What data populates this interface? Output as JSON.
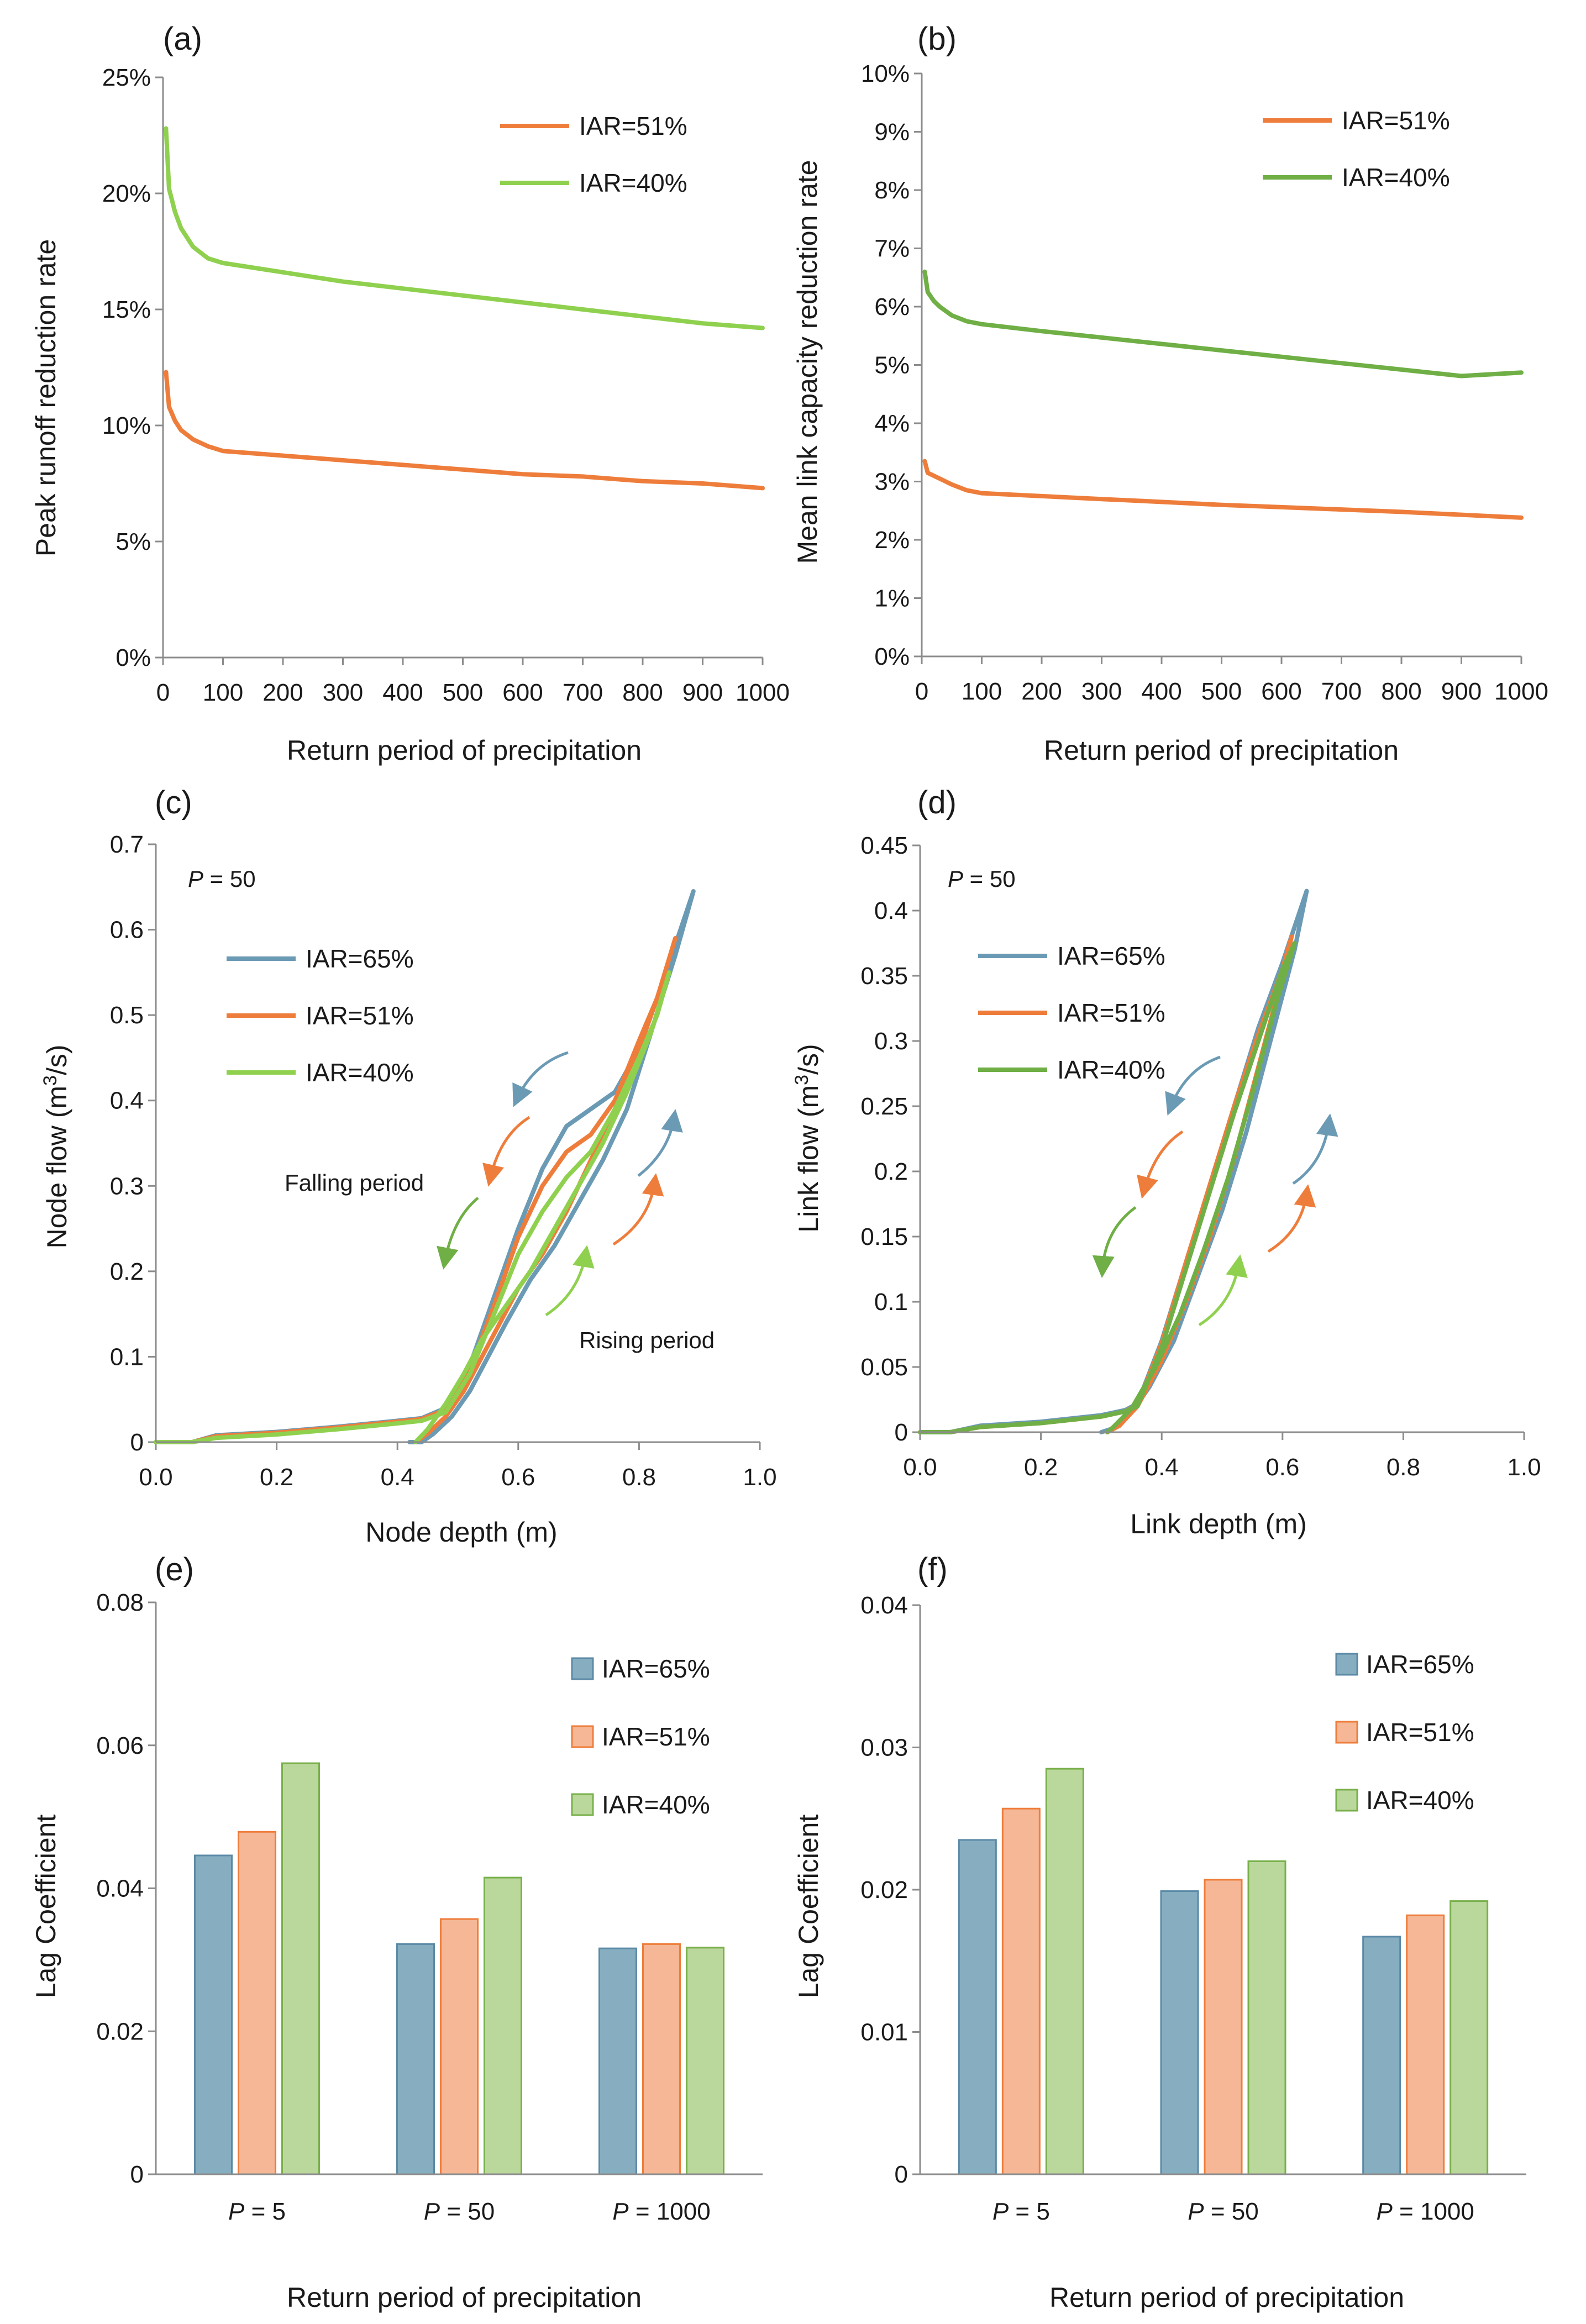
{
  "figure": {
    "colors": {
      "IAR=65%": "#6b9ab5",
      "IAR=51%": "#ee7d3b",
      "IAR=40%": "#8fd14f",
      "IAR=40%_b": "#6faf46",
      "bar_IAR=65%": "#86aec0",
      "bar_IAR=65%_edge": "#5b8aa6",
      "bar_IAR=51%": "#f5b796",
      "bar_IAR=51%_edge": "#ee7d3b",
      "bar_IAR=40%": "#bad79c",
      "bar_IAR=40%_edge": "#78b04a",
      "axis": "#8c8c8c"
    }
  },
  "chart_data": [
    {
      "id": "a",
      "panel_label": "(a)",
      "type": "line",
      "xlabel": "Return period of precipitation",
      "ylabel": "Peak runoff reduction rate",
      "xlim": [
        0,
        1000
      ],
      "ylim": [
        0,
        0.25
      ],
      "xticks": [
        0,
        100,
        200,
        300,
        400,
        500,
        600,
        700,
        800,
        900,
        1000
      ],
      "yticks": [
        0,
        0.05,
        0.1,
        0.15,
        0.2,
        0.25
      ],
      "ytick_labels": [
        "0%",
        "5%",
        "10%",
        "15%",
        "20%",
        "25%"
      ],
      "legend": "top-right",
      "series": [
        {
          "name": "IAR=51%",
          "x": [
            5,
            10,
            20,
            30,
            50,
            75,
            100,
            200,
            300,
            400,
            500,
            600,
            700,
            800,
            900,
            1000
          ],
          "y": [
            0.123,
            0.108,
            0.102,
            0.098,
            0.094,
            0.091,
            0.089,
            0.087,
            0.085,
            0.083,
            0.081,
            0.079,
            0.078,
            0.076,
            0.075,
            0.073
          ]
        },
        {
          "name": "IAR=40%",
          "x": [
            5,
            10,
            20,
            30,
            50,
            75,
            100,
            200,
            300,
            400,
            500,
            600,
            700,
            800,
            900,
            1000
          ],
          "y": [
            0.228,
            0.202,
            0.192,
            0.185,
            0.177,
            0.172,
            0.17,
            0.166,
            0.162,
            0.159,
            0.156,
            0.153,
            0.15,
            0.147,
            0.144,
            0.142
          ]
        }
      ]
    },
    {
      "id": "b",
      "panel_label": "(b)",
      "type": "line",
      "xlabel": "Return period of precipitation",
      "ylabel": "Mean link capacity reduction rate",
      "xlim": [
        0,
        1000
      ],
      "ylim": [
        0,
        0.1
      ],
      "xticks": [
        0,
        100,
        200,
        300,
        400,
        500,
        600,
        700,
        800,
        900,
        1000
      ],
      "yticks": [
        0,
        0.01,
        0.02,
        0.03,
        0.04,
        0.05,
        0.06,
        0.07,
        0.08,
        0.09,
        0.1
      ],
      "ytick_labels": [
        "0%",
        "1%",
        "2%",
        "3%",
        "4%",
        "5%",
        "6%",
        "7%",
        "8%",
        "9%",
        "10%"
      ],
      "legend": "top-right",
      "series": [
        {
          "name": "IAR=51%",
          "x": [
            5,
            10,
            20,
            30,
            50,
            75,
            100,
            200,
            300,
            400,
            500,
            600,
            700,
            800,
            900,
            1000
          ],
          "y": [
            0.0335,
            0.0315,
            0.031,
            0.0305,
            0.0295,
            0.0285,
            0.028,
            0.0275,
            0.027,
            0.0265,
            0.026,
            0.0256,
            0.0252,
            0.0248,
            0.0243,
            0.0238
          ]
        },
        {
          "name": "IAR=40%",
          "x": [
            5,
            10,
            20,
            30,
            50,
            75,
            100,
            200,
            300,
            400,
            500,
            600,
            700,
            800,
            900,
            1000
          ],
          "y": [
            0.066,
            0.0625,
            0.061,
            0.06,
            0.0585,
            0.0575,
            0.057,
            0.0558,
            0.0547,
            0.0536,
            0.0525,
            0.0514,
            0.0503,
            0.0492,
            0.0481,
            0.0487
          ]
        }
      ]
    },
    {
      "id": "c",
      "panel_label": "(c)",
      "type": "line",
      "xlabel": "Node depth (m)",
      "ylabel_parts": [
        "Node flow (m",
        "3",
        "/s)"
      ],
      "xlim": [
        0,
        1.0
      ],
      "ylim": [
        0,
        0.7
      ],
      "xticks": [
        0,
        0.2,
        0.4,
        0.6,
        0.8,
        1.0
      ],
      "xtick_labels": [
        "0.0",
        "0.2",
        "0.4",
        "0.6",
        "0.8",
        "1.0"
      ],
      "yticks": [
        0,
        0.1,
        0.2,
        0.3,
        0.4,
        0.5,
        0.6,
        0.7
      ],
      "ytick_labels": [
        "0",
        "0.1",
        "0.2",
        "0.3",
        "0.4",
        "0.5",
        "0.6",
        "0.7"
      ],
      "annotation_p": "P",
      "annotation_p_value": " = 50",
      "annotation_falling": "Falling period",
      "annotation_rising": "Rising period",
      "legend": "top-left",
      "series": [
        {
          "name": "IAR=65%",
          "x": [
            0.0,
            0.06,
            0.1,
            0.2,
            0.3,
            0.4,
            0.44,
            0.48,
            0.52,
            0.56,
            0.6,
            0.64,
            0.68,
            0.72,
            0.76,
            0.8,
            0.84,
            0.89,
            0.86,
            0.82,
            0.78,
            0.74,
            0.7,
            0.66,
            0.62,
            0.58,
            0.55,
            0.52,
            0.49,
            0.46,
            0.44,
            0.42
          ],
          "y": [
            0.0,
            0.0,
            0.008,
            0.012,
            0.018,
            0.025,
            0.028,
            0.04,
            0.09,
            0.17,
            0.25,
            0.32,
            0.37,
            0.39,
            0.41,
            0.46,
            0.54,
            0.645,
            0.57,
            0.48,
            0.39,
            0.33,
            0.28,
            0.23,
            0.19,
            0.14,
            0.1,
            0.06,
            0.03,
            0.01,
            0.0,
            0.0
          ]
        },
        {
          "name": "IAR=51%",
          "x": [
            0.0,
            0.06,
            0.1,
            0.2,
            0.3,
            0.4,
            0.44,
            0.48,
            0.52,
            0.56,
            0.6,
            0.64,
            0.68,
            0.72,
            0.76,
            0.8,
            0.83,
            0.86,
            0.83,
            0.8,
            0.76,
            0.72,
            0.68,
            0.64,
            0.6,
            0.57,
            0.54,
            0.51,
            0.48,
            0.45,
            0.43
          ],
          "y": [
            0.0,
            0.0,
            0.007,
            0.011,
            0.017,
            0.024,
            0.027,
            0.038,
            0.085,
            0.16,
            0.24,
            0.3,
            0.34,
            0.36,
            0.4,
            0.47,
            0.52,
            0.59,
            0.52,
            0.46,
            0.39,
            0.33,
            0.27,
            0.22,
            0.18,
            0.14,
            0.1,
            0.06,
            0.03,
            0.01,
            0.0
          ]
        },
        {
          "name": "IAR=40%",
          "x": [
            0.0,
            0.06,
            0.1,
            0.2,
            0.3,
            0.4,
            0.44,
            0.48,
            0.52,
            0.56,
            0.6,
            0.64,
            0.68,
            0.72,
            0.76,
            0.8,
            0.83,
            0.85,
            0.82,
            0.78,
            0.74,
            0.7,
            0.66,
            0.62,
            0.58,
            0.54,
            0.51,
            0.48,
            0.45,
            0.43
          ],
          "y": [
            0.0,
            0.0,
            0.005,
            0.009,
            0.015,
            0.022,
            0.025,
            0.035,
            0.08,
            0.15,
            0.22,
            0.27,
            0.31,
            0.34,
            0.39,
            0.45,
            0.5,
            0.55,
            0.48,
            0.41,
            0.35,
            0.3,
            0.25,
            0.2,
            0.16,
            0.12,
            0.08,
            0.045,
            0.015,
            0.0
          ]
        }
      ]
    },
    {
      "id": "d",
      "panel_label": "(d)",
      "type": "line",
      "xlabel": "Link depth (m)",
      "ylabel_parts": [
        "Link flow (m",
        "3",
        "/s)"
      ],
      "xlim": [
        0,
        1.0
      ],
      "ylim": [
        0,
        0.45
      ],
      "xticks": [
        0,
        0.2,
        0.4,
        0.6,
        0.8,
        1.0
      ],
      "xtick_labels": [
        "0.0",
        "0.2",
        "0.4",
        "0.6",
        "0.8",
        "1.0"
      ],
      "yticks": [
        0,
        0.05,
        0.1,
        0.15,
        0.2,
        0.25,
        0.3,
        0.35,
        0.4,
        0.45
      ],
      "ytick_labels": [
        "0",
        "0.05",
        "0.1",
        "0.15",
        "0.2",
        "0.25",
        "0.3",
        "0.35",
        "0.4",
        "0.45"
      ],
      "annotation_p": "P",
      "annotation_p_value": " = 50",
      "legend": "top-left",
      "series": [
        {
          "name": "IAR=65%",
          "x": [
            0.0,
            0.05,
            0.1,
            0.2,
            0.3,
            0.34,
            0.36,
            0.4,
            0.44,
            0.48,
            0.52,
            0.56,
            0.6,
            0.64,
            0.62,
            0.58,
            0.54,
            0.5,
            0.46,
            0.42,
            0.38,
            0.35,
            0.32,
            0.3
          ],
          "y": [
            0.0,
            0.0,
            0.005,
            0.008,
            0.013,
            0.017,
            0.022,
            0.07,
            0.13,
            0.19,
            0.25,
            0.31,
            0.36,
            0.415,
            0.37,
            0.3,
            0.23,
            0.17,
            0.12,
            0.07,
            0.035,
            0.015,
            0.003,
            0.0
          ]
        },
        {
          "name": "IAR=51%",
          "x": [
            0.0,
            0.05,
            0.1,
            0.2,
            0.3,
            0.34,
            0.36,
            0.4,
            0.44,
            0.48,
            0.52,
            0.56,
            0.6,
            0.615,
            0.6,
            0.56,
            0.52,
            0.48,
            0.44,
            0.4,
            0.36,
            0.33,
            0.31
          ],
          "y": [
            0.0,
            0.0,
            0.004,
            0.007,
            0.012,
            0.016,
            0.021,
            0.068,
            0.13,
            0.19,
            0.25,
            0.305,
            0.355,
            0.38,
            0.35,
            0.28,
            0.21,
            0.15,
            0.1,
            0.055,
            0.02,
            0.005,
            0.0
          ]
        },
        {
          "name": "IAR=40%",
          "x": [
            0.0,
            0.05,
            0.1,
            0.2,
            0.3,
            0.34,
            0.36,
            0.4,
            0.44,
            0.48,
            0.52,
            0.56,
            0.6,
            0.62,
            0.59,
            0.55,
            0.51,
            0.47,
            0.43,
            0.39,
            0.35,
            0.32,
            0.31
          ],
          "y": [
            0.0,
            0.0,
            0.004,
            0.007,
            0.012,
            0.016,
            0.02,
            0.065,
            0.125,
            0.185,
            0.245,
            0.3,
            0.355,
            0.375,
            0.33,
            0.26,
            0.195,
            0.14,
            0.09,
            0.05,
            0.018,
            0.004,
            0.0
          ]
        }
      ]
    },
    {
      "id": "e",
      "panel_label": "(e)",
      "type": "bar",
      "xlabel": "Return period of precipitation",
      "ylabel": "Lag Coefficient",
      "ylim": [
        0,
        0.08
      ],
      "yticks": [
        0,
        0.02,
        0.04,
        0.06,
        0.08
      ],
      "ytick_labels": [
        "0",
        "0.02",
        "0.04",
        "0.06",
        "0.08"
      ],
      "categories": [
        "5",
        "50",
        "1000"
      ],
      "category_prefix": "P",
      "category_sep": " = ",
      "legend": "top-right",
      "series": [
        {
          "name": "IAR=65%",
          "values": [
            0.0446,
            0.0322,
            0.0316
          ]
        },
        {
          "name": "IAR=51%",
          "values": [
            0.0479,
            0.0357,
            0.0322
          ]
        },
        {
          "name": "IAR=40%",
          "values": [
            0.0575,
            0.0415,
            0.0317
          ]
        }
      ]
    },
    {
      "id": "f",
      "panel_label": "(f)",
      "type": "bar",
      "xlabel": "Return period of precipitation",
      "ylabel": "Lag Coefficient",
      "ylim": [
        0,
        0.04
      ],
      "yticks": [
        0,
        0.01,
        0.02,
        0.03,
        0.04
      ],
      "ytick_labels": [
        "0",
        "0.01",
        "0.02",
        "0.03",
        "0.04"
      ],
      "categories": [
        "5",
        "50",
        "1000"
      ],
      "category_prefix": "P",
      "category_sep": " = ",
      "legend": "top-right",
      "series": [
        {
          "name": "IAR=65%",
          "values": [
            0.0235,
            0.0199,
            0.0167
          ]
        },
        {
          "name": "IAR=51%",
          "values": [
            0.0257,
            0.0207,
            0.0182
          ]
        },
        {
          "name": "IAR=40%",
          "values": [
            0.0285,
            0.022,
            0.0192
          ]
        }
      ]
    }
  ]
}
